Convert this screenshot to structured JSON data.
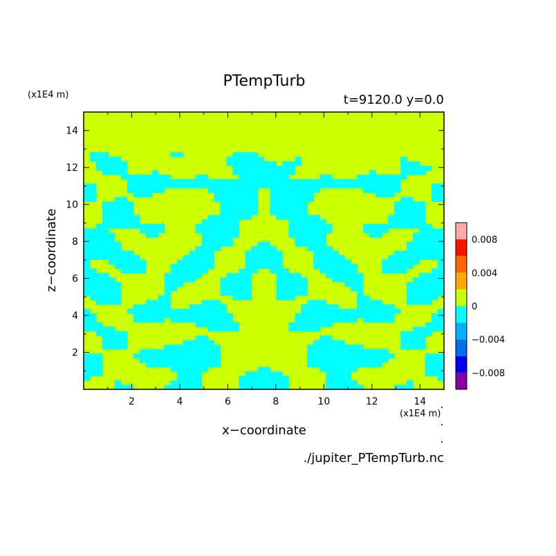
{
  "chart_data": {
    "type": "heatmap",
    "title": "PTempTurb",
    "subtitle": "t=9120.0 y=0.0",
    "xlabel": "x−coordinate",
    "ylabel": "z−coordinate",
    "x_units": "(x1E4 m)",
    "y_units": "(x1E4 m)",
    "footer": "./jupiter_PTempTurb.nc",
    "xlim": [
      0,
      15
    ],
    "ylim": [
      0,
      15
    ],
    "x_ticks": [
      "2",
      "4",
      "6",
      "8",
      "10",
      "12",
      "14"
    ],
    "y_ticks": [
      "2",
      "4",
      "6",
      "8",
      "10",
      "12",
      "14"
    ],
    "grid": false,
    "field_description": "mirror-symmetric turbulent pattern about x=7.5; two dominant levels (0 to 0.002 and -0.002 to 0) below z~12.5, uniform 0 to 0.002 above",
    "symmetry_axis_x": 7.5,
    "turbulent_top_z": 12.5,
    "colorbar": {
      "levels": [
        -0.01,
        -0.008,
        -0.006,
        -0.004,
        -0.002,
        0,
        0.002,
        0.004,
        0.006,
        0.008,
        0.01
      ],
      "colors": [
        "#8800aa",
        "#0000ee",
        "#0070ee",
        "#00b0ff",
        "#00ffff",
        "#ccff00",
        "#ffaa00",
        "#ff6600",
        "#ff1100",
        "#ffaaaa"
      ],
      "tick_labels": [
        "0.008",
        "0.004",
        "0",
        "−0.004",
        "−0.008"
      ],
      "tick_values": [
        0.008,
        0.004,
        0,
        -0.004,
        -0.008
      ],
      "placement": "right"
    }
  }
}
